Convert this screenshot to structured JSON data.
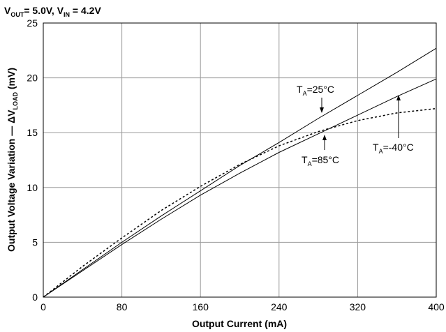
{
  "chart_data": {
    "type": "line",
    "conditions": {
      "vout_symbol": "V",
      "vout_sub": "OUT",
      "vout_value": "= 5.0V, ",
      "vin_symbol": "V",
      "vin_sub": "IN",
      "vin_value": " = 4.2V"
    },
    "xlabel": "Output Current  (mA)",
    "ylabel_prefix": "Output Voltage Variation — ΔV",
    "ylabel_sub": "LOAD",
    "ylabel_suffix": " (mV)",
    "xlim": [
      0,
      400
    ],
    "ylim": [
      0,
      25
    ],
    "xticks": [
      0,
      80,
      160,
      240,
      320,
      400
    ],
    "yticks": [
      0,
      5,
      10,
      15,
      20,
      25
    ],
    "xtick_labels": [
      "0",
      "80",
      "160",
      "240",
      "320",
      "400"
    ],
    "ytick_labels": [
      "0",
      "5",
      "10",
      "15",
      "20",
      "25"
    ],
    "grid": true,
    "series": [
      {
        "label_symbol": "T",
        "label_sub": "A",
        "label_value": "=25°C",
        "style": "solid",
        "x": [
          0,
          40,
          80,
          120,
          160,
          200,
          240,
          280,
          320,
          360,
          400
        ],
        "y": [
          0,
          2.5,
          5.0,
          7.4,
          9.7,
          12.0,
          14.1,
          16.3,
          18.4,
          20.5,
          22.7
        ]
      },
      {
        "label_symbol": "T",
        "label_sub": "A",
        "label_value": "=85°C",
        "style": "solid",
        "x": [
          0,
          40,
          80,
          120,
          160,
          200,
          240,
          280,
          320,
          360,
          400
        ],
        "y": [
          0,
          2.4,
          4.8,
          7.1,
          9.3,
          11.3,
          13.2,
          14.9,
          16.6,
          18.3,
          19.9
        ]
      },
      {
        "label_symbol": "T",
        "label_sub": "A",
        "label_value": "=-40°C",
        "style": "dotted",
        "x": [
          0,
          40,
          80,
          120,
          160,
          200,
          240,
          280,
          320,
          360,
          400
        ],
        "y": [
          0,
          2.8,
          5.4,
          7.9,
          10.1,
          12.1,
          13.8,
          15.1,
          16.1,
          16.8,
          17.2
        ]
      }
    ]
  }
}
